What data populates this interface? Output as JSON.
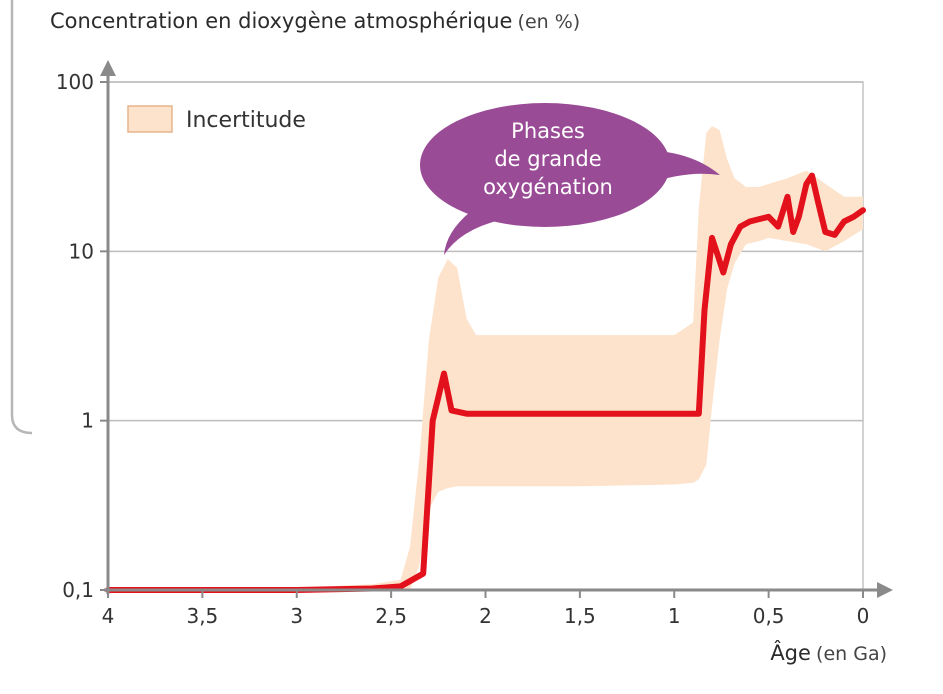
{
  "chart_data": {
    "type": "line",
    "title": "Concentration en dioxygène atmosphérique",
    "title_unit": "(en %)",
    "xlabel": "Âge",
    "xlabel_unit": "(en Ga)",
    "ylabel": "",
    "y_scale": "log",
    "xlim": [
      4,
      0
    ],
    "ylim": [
      0.1,
      100
    ],
    "x_ticks": [
      {
        "value": 4,
        "label": "4"
      },
      {
        "value": 3.5,
        "label": "3,5"
      },
      {
        "value": 3,
        "label": "3"
      },
      {
        "value": 2.5,
        "label": "2,5"
      },
      {
        "value": 2,
        "label": "2"
      },
      {
        "value": 1.5,
        "label": "1,5"
      },
      {
        "value": 1,
        "label": "1"
      },
      {
        "value": 0.5,
        "label": "0,5"
      },
      {
        "value": 0,
        "label": "0"
      }
    ],
    "y_ticks": [
      {
        "value": 0.1,
        "label": "0,1"
      },
      {
        "value": 1,
        "label": "1"
      },
      {
        "value": 10,
        "label": "10"
      },
      {
        "value": 100,
        "label": "100"
      }
    ],
    "grid": "horizontal",
    "legend": {
      "position": "top-left",
      "entries": [
        {
          "label": "Incertitude",
          "color": "#fde3cb"
        }
      ]
    },
    "annotation": {
      "lines": [
        "Phases",
        "de grande",
        "oxygénation"
      ],
      "color": "#9a4b96",
      "points_to": [
        {
          "x": 2.2,
          "y": 8.5
        },
        {
          "x": 0.8,
          "y": 50
        }
      ]
    },
    "series": [
      {
        "type": "line",
        "color": "#e3111b",
        "x": [
          4.0,
          3.5,
          3.0,
          2.6,
          2.45,
          2.33,
          2.28,
          2.22,
          2.18,
          2.1,
          2.0,
          1.5,
          1.0,
          0.87,
          0.84,
          0.8,
          0.77,
          0.74,
          0.7,
          0.65,
          0.6,
          0.55,
          0.5,
          0.45,
          0.4,
          0.37,
          0.34,
          0.3,
          0.27,
          0.24,
          0.2,
          0.15,
          0.1,
          0.05,
          0.0
        ],
        "y": [
          0.1,
          0.1,
          0.1,
          0.102,
          0.105,
          0.125,
          1.0,
          1.9,
          1.15,
          1.1,
          1.1,
          1.1,
          1.1,
          1.1,
          4.5,
          12.0,
          9.5,
          7.5,
          11.0,
          14.0,
          15.0,
          15.5,
          16.0,
          14.0,
          21.0,
          13.0,
          16.0,
          25.0,
          28.0,
          20.0,
          13.0,
          12.5,
          15.0,
          16.0,
          17.5
        ]
      },
      {
        "type": "band",
        "color": "#fde3cb",
        "x": [
          4.0,
          3.5,
          3.0,
          2.6,
          2.45,
          2.4,
          2.35,
          2.3,
          2.25,
          2.2,
          2.15,
          2.1,
          2.05,
          1.5,
          1.0,
          0.9,
          0.87,
          0.83,
          0.8,
          0.76,
          0.72,
          0.68,
          0.62,
          0.55,
          0.5,
          0.4,
          0.3,
          0.2,
          0.1,
          0.0
        ],
        "upper": [
          0.1,
          0.1,
          0.103,
          0.108,
          0.115,
          0.18,
          0.6,
          3.0,
          7.0,
          9.0,
          8.0,
          4.0,
          3.2,
          3.2,
          3.2,
          3.8,
          18.0,
          50.0,
          55.0,
          52.0,
          35.0,
          27.0,
          24.0,
          24.0,
          25.0,
          27.0,
          30.0,
          25.0,
          21.0,
          21.0
        ],
        "lower": [
          0.1,
          0.1,
          0.1,
          0.1,
          0.1,
          0.1,
          0.14,
          0.3,
          0.38,
          0.4,
          0.41,
          0.41,
          0.41,
          0.41,
          0.42,
          0.43,
          0.45,
          0.55,
          1.2,
          3.0,
          6.0,
          8.5,
          11.0,
          11.5,
          12.0,
          11.5,
          11.0,
          10.0,
          11.5,
          13.5
        ]
      }
    ]
  }
}
